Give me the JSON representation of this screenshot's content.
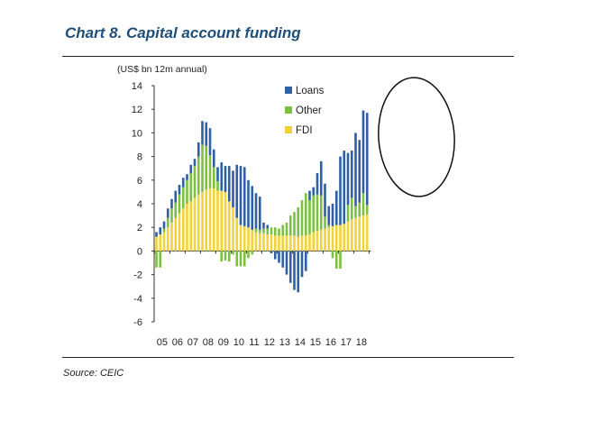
{
  "title": "Chart 8. Capital account funding",
  "source": "Source: CEIC",
  "colors": {
    "loans": "#2f5fa5",
    "other": "#7cc040",
    "fdi": "#f3d23a",
    "circle": "#111111"
  },
  "chart_data": {
    "type": "bar",
    "stacked": true,
    "ylabel": "(US$ bn 12m annual)",
    "ylim": [
      -6,
      14
    ],
    "yticks": [
      14,
      12,
      10,
      8,
      6,
      4,
      2,
      0,
      -2,
      -4,
      -6
    ],
    "xticks": [
      "05",
      "06",
      "07",
      "08",
      "09",
      "10",
      "11",
      "12",
      "13",
      "14",
      "15",
      "16",
      "17",
      "18"
    ],
    "legend_position": "top-center",
    "series": [
      {
        "name": "Loans",
        "key": "loans"
      },
      {
        "name": "Other",
        "key": "other"
      },
      {
        "name": "FDI",
        "key": "fdi"
      }
    ],
    "points": [
      {
        "x": "05 Q1",
        "fdi": 1.2,
        "other": -1.4,
        "loans": 0.4
      },
      {
        "x": "05 Q2",
        "fdi": 1.4,
        "other": -1.4,
        "loans": 0.6
      },
      {
        "x": "05 Q3",
        "fdi": 1.6,
        "other": 0.3,
        "loans": 0.6
      },
      {
        "x": "05 Q4",
        "fdi": 2.0,
        "other": 0.8,
        "loans": 0.8
      },
      {
        "x": "06 Q1",
        "fdi": 2.4,
        "other": 1.2,
        "loans": 0.8
      },
      {
        "x": "06 Q2",
        "fdi": 2.8,
        "other": 1.3,
        "loans": 1.0
      },
      {
        "x": "06 Q3",
        "fdi": 3.2,
        "other": 1.6,
        "loans": 0.8
      },
      {
        "x": "06 Q4",
        "fdi": 3.6,
        "other": 1.8,
        "loans": 0.8
      },
      {
        "x": "07 Q1",
        "fdi": 4.0,
        "other": 2.0,
        "loans": 0.5
      },
      {
        "x": "07 Q2",
        "fdi": 4.2,
        "other": 2.4,
        "loans": 0.7
      },
      {
        "x": "07 Q3",
        "fdi": 4.5,
        "other": 2.7,
        "loans": 0.6
      },
      {
        "x": "07 Q4",
        "fdi": 4.8,
        "other": 3.2,
        "loans": 1.2
      },
      {
        "x": "08 Q1",
        "fdi": 5.0,
        "other": 4.0,
        "loans": 2.0
      },
      {
        "x": "08 Q2",
        "fdi": 5.2,
        "other": 3.7,
        "loans": 2.0
      },
      {
        "x": "08 Q3",
        "fdi": 5.3,
        "other": 2.8,
        "loans": 2.3
      },
      {
        "x": "08 Q4",
        "fdi": 5.3,
        "other": 1.8,
        "loans": 1.5
      },
      {
        "x": "09 Q1",
        "fdi": 5.1,
        "other": 0.8,
        "loans": 1.2
      },
      {
        "x": "09 Q2",
        "fdi": 5.1,
        "other": -0.9,
        "loans": 2.4
      },
      {
        "x": "09 Q3",
        "fdi": 5.0,
        "other": -0.8,
        "loans": 2.2
      },
      {
        "x": "09 Q4",
        "fdi": 4.2,
        "other": -0.9,
        "loans": 3.0
      },
      {
        "x": "10 Q1",
        "fdi": 3.7,
        "other": -0.3,
        "loans": 3.1
      },
      {
        "x": "10 Q2",
        "fdi": 2.8,
        "other": -1.3,
        "loans": 4.5
      },
      {
        "x": "10 Q3",
        "fdi": 2.2,
        "other": -1.3,
        "loans": 5.0
      },
      {
        "x": "10 Q4",
        "fdi": 2.1,
        "other": -1.3,
        "loans": 5.0
      },
      {
        "x": "11 Q1",
        "fdi": 2.0,
        "other": -0.6,
        "loans": 4.0
      },
      {
        "x": "11 Q2",
        "fdi": 1.8,
        "other": -0.3,
        "loans": 3.7
      },
      {
        "x": "11 Q3",
        "fdi": 1.6,
        "other": 0.3,
        "loans": 3.0
      },
      {
        "x": "11 Q4",
        "fdi": 1.5,
        "other": 0.3,
        "loans": 2.8
      },
      {
        "x": "12 Q1",
        "fdi": 1.5,
        "other": 0.4,
        "loans": 0.5
      },
      {
        "x": "12 Q2",
        "fdi": 1.4,
        "other": 0.5,
        "loans": 0.3
      },
      {
        "x": "12 Q3",
        "fdi": 1.4,
        "other": 0.6,
        "loans": -0.2
      },
      {
        "x": "12 Q4",
        "fdi": 1.3,
        "other": 0.7,
        "loans": -0.7
      },
      {
        "x": "13 Q1",
        "fdi": 1.3,
        "other": 0.6,
        "loans": -1.0
      },
      {
        "x": "13 Q2",
        "fdi": 1.3,
        "other": 0.9,
        "loans": -1.4
      },
      {
        "x": "13 Q3",
        "fdi": 1.3,
        "other": 1.1,
        "loans": -2.0
      },
      {
        "x": "13 Q4",
        "fdi": 1.3,
        "other": 1.7,
        "loans": -2.7
      },
      {
        "x": "14 Q1",
        "fdi": 1.3,
        "other": 2.0,
        "loans": -3.3
      },
      {
        "x": "14 Q2",
        "fdi": 1.2,
        "other": 2.5,
        "loans": -3.5
      },
      {
        "x": "14 Q3",
        "fdi": 1.3,
        "other": 3.0,
        "loans": -2.2
      },
      {
        "x": "14 Q4",
        "fdi": 1.3,
        "other": 3.6,
        "loans": -1.7
      },
      {
        "x": "15 Q1",
        "fdi": 1.4,
        "other": 2.9,
        "loans": 0.8
      },
      {
        "x": "15 Q2",
        "fdi": 1.6,
        "other": 3.1,
        "loans": 0.7
      },
      {
        "x": "15 Q3",
        "fdi": 1.7,
        "other": 3.1,
        "loans": 1.8
      },
      {
        "x": "15 Q4",
        "fdi": 1.8,
        "other": 2.9,
        "loans": 2.9
      },
      {
        "x": "16 Q1",
        "fdi": 1.9,
        "other": 1.0,
        "loans": 2.8
      },
      {
        "x": "16 Q2",
        "fdi": 2.0,
        "other": 0.2,
        "loans": 1.6
      },
      {
        "x": "16 Q3",
        "fdi": 2.1,
        "other": -0.6,
        "loans": 1.9
      },
      {
        "x": "16 Q4",
        "fdi": 2.2,
        "other": -1.5,
        "loans": 2.9
      },
      {
        "x": "17 Q1",
        "fdi": 2.2,
        "other": -1.5,
        "loans": 5.8
      },
      {
        "x": "17 Q2",
        "fdi": 2.3,
        "other": 0.0,
        "loans": 6.2
      },
      {
        "x": "17 Q3",
        "fdi": 2.5,
        "other": 1.4,
        "loans": 4.4
      },
      {
        "x": "17 Q4",
        "fdi": 2.7,
        "other": 1.8,
        "loans": 4.0
      },
      {
        "x": "18 Q1",
        "fdi": 2.8,
        "other": 1.0,
        "loans": 6.2
      },
      {
        "x": "18 Q2",
        "fdi": 2.9,
        "other": 1.2,
        "loans": 5.3
      },
      {
        "x": "18 Q3",
        "fdi": 3.0,
        "other": 1.9,
        "loans": 7.0
      },
      {
        "x": "18 Q4",
        "fdi": 3.1,
        "other": 0.8,
        "loans": 7.8
      }
    ]
  }
}
